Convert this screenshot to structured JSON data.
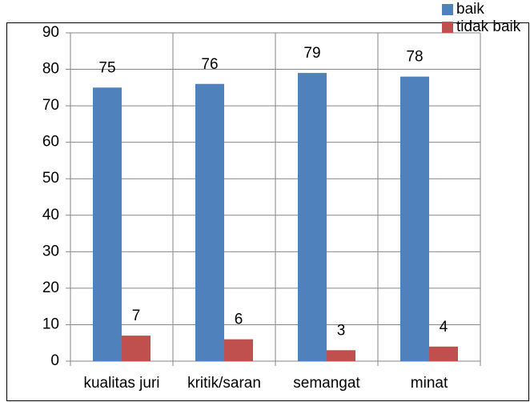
{
  "chart_data": {
    "type": "bar",
    "categories": [
      "kualitas juri",
      "kritik/saran",
      "semangat",
      "minat"
    ],
    "series": [
      {
        "name": "baik",
        "color": "#4f81bd",
        "values": [
          75,
          76,
          79,
          78
        ]
      },
      {
        "name": "tidak baik",
        "color": "#c0504d",
        "values": [
          7,
          6,
          3,
          4
        ]
      }
    ],
    "ylim": [
      0,
      90
    ],
    "yticks": [
      0,
      10,
      20,
      30,
      40,
      50,
      60,
      70,
      80,
      90
    ],
    "grid": true,
    "legend": "top-right"
  }
}
